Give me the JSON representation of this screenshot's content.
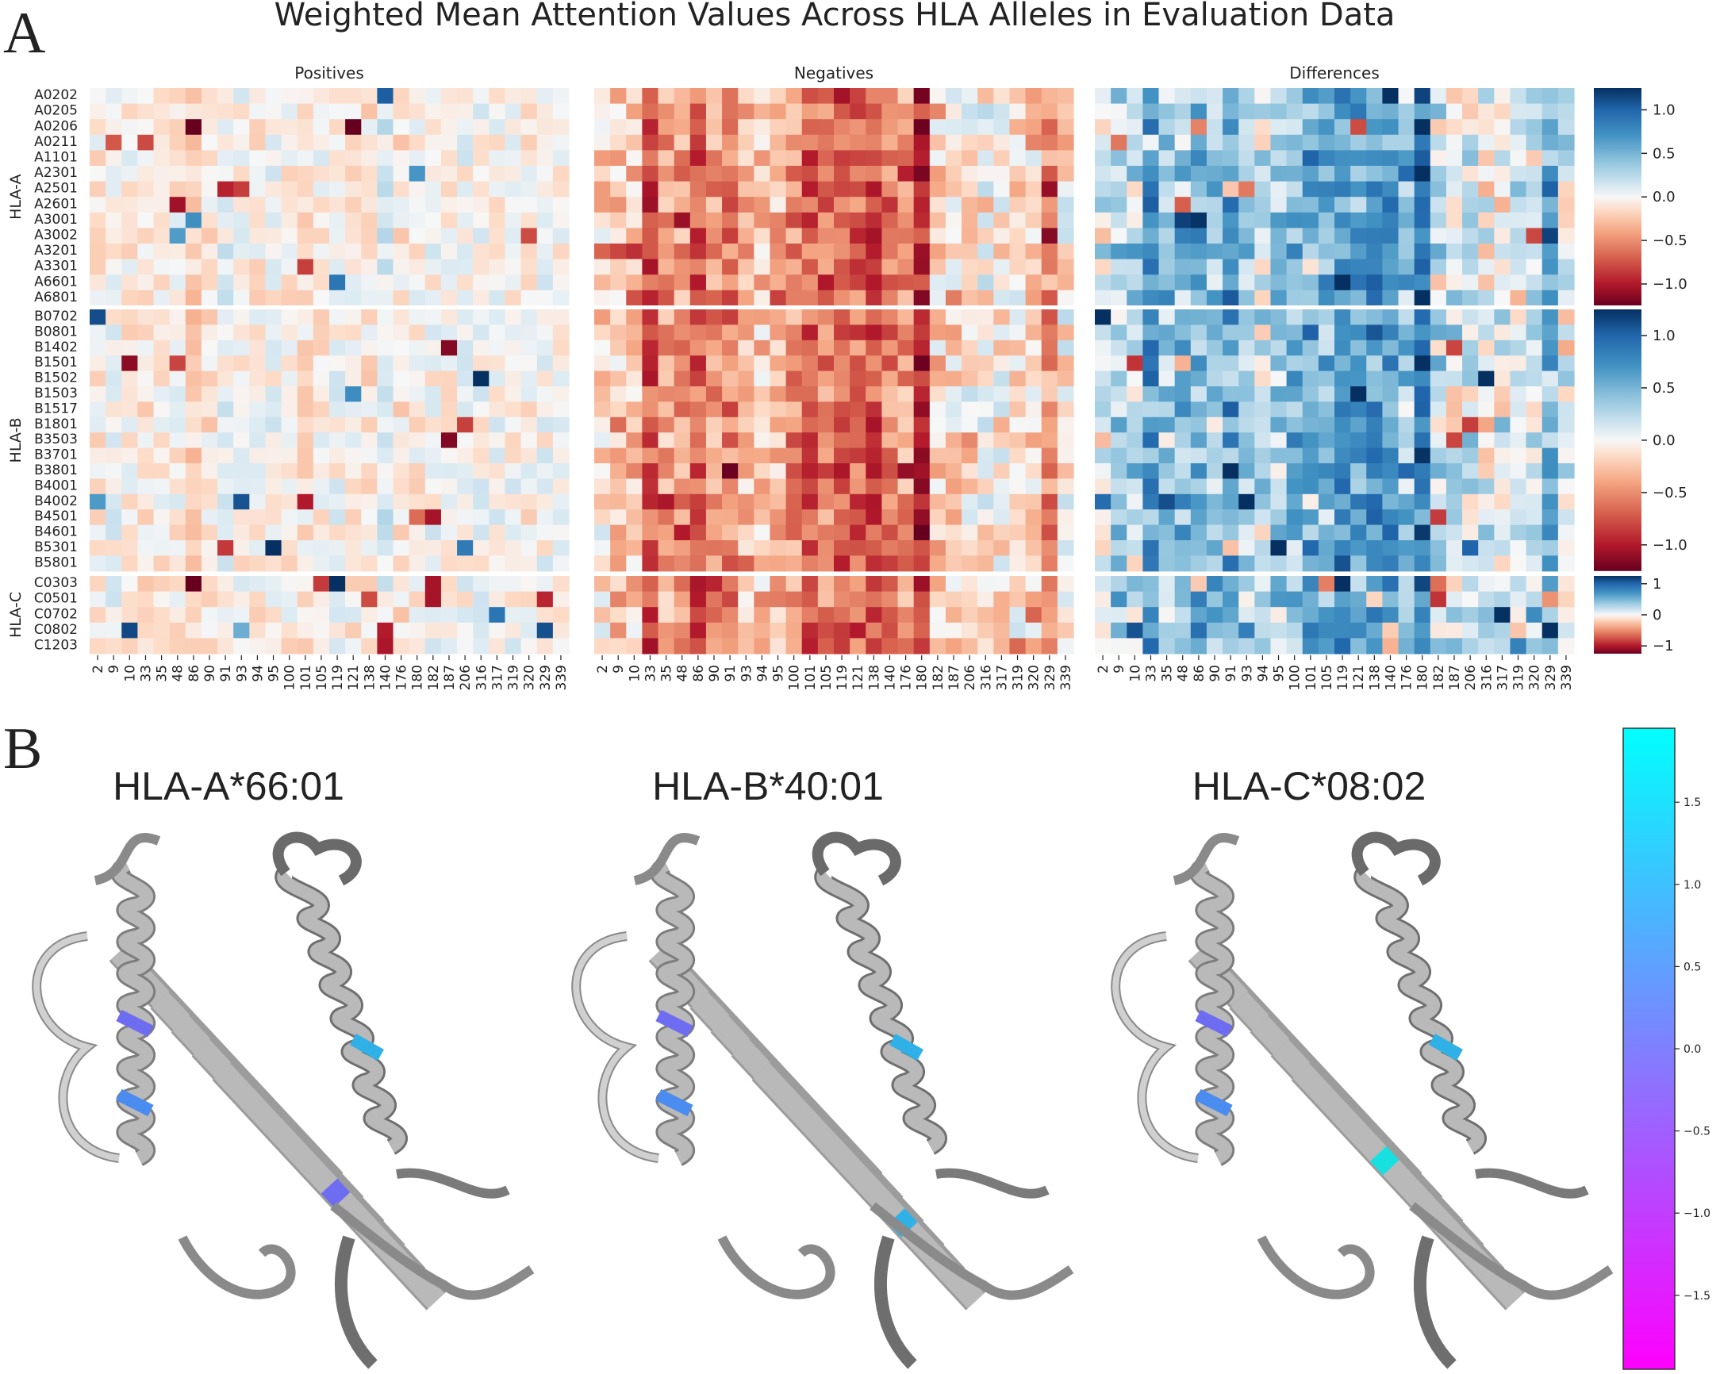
{
  "figure": {
    "panel_a_letter": "A",
    "panel_b_letter": "B",
    "title": "Weighted Mean Attention Values Across HLA Alleles in Evaluation Data"
  },
  "chart_data": [
    {
      "type": "heatmap",
      "title": "Weighted Mean Attention Values Across HLA Alleles in Evaluation Data",
      "panels": [
        "Positives",
        "Negatives",
        "Differences"
      ],
      "positions": [
        "2",
        "9",
        "10",
        "33",
        "35",
        "48",
        "86",
        "90",
        "91",
        "93",
        "94",
        "95",
        "100",
        "101",
        "105",
        "119",
        "121",
        "138",
        "140",
        "176",
        "180",
        "182",
        "187",
        "206",
        "316",
        "317",
        "319",
        "320",
        "329",
        "339"
      ],
      "groups": [
        {
          "label": "HLA-A",
          "alleles": [
            "A0202",
            "A0205",
            "A0206",
            "A0211",
            "A1101",
            "A2301",
            "A2501",
            "A2601",
            "A3001",
            "A3002",
            "A3201",
            "A3301",
            "A6601",
            "A6801"
          ],
          "colorbar_ticks": [
            "1.0",
            "0.5",
            "0.0",
            "−0.5",
            "−1.0"
          ],
          "range": [
            -1.25,
            1.25
          ]
        },
        {
          "label": "HLA-B",
          "alleles": [
            "B0702",
            "B0801",
            "B1402",
            "B1501",
            "B1502",
            "B1503",
            "B1517",
            "B1801",
            "B3503",
            "B3701",
            "B3801",
            "B4001",
            "B4002",
            "B4501",
            "B4601",
            "B5301",
            "B5801"
          ],
          "colorbar_ticks": [
            "1.0",
            "0.5",
            "0.0",
            "−0.5",
            "−1.0"
          ],
          "range": [
            -1.25,
            1.25
          ]
        },
        {
          "label": "HLA-C",
          "alleles": [
            "C0303",
            "C0501",
            "C0702",
            "C0802",
            "C1203"
          ],
          "colorbar_ticks": [
            "1",
            "0",
            "−1"
          ],
          "range": [
            -1.25,
            1.25
          ]
        }
      ],
      "colormap": "RdBu",
      "note_values": "cell values estimated by eye (approximate)"
    },
    {
      "type": "colorbar",
      "colormap": "cool",
      "range": [
        -1.95,
        1.95
      ],
      "ticks": [
        "1.5",
        "1.0",
        "0.5",
        "0.0",
        "−0.5",
        "−1.0",
        "−1.5"
      ]
    }
  ],
  "structures": {
    "titles": [
      "HLA-A*66:01",
      "HLA-B*40:01",
      "HLA-C*08:02"
    ],
    "ribbon_color": "#b9b9b9",
    "highlight_colors": [
      "#4a8cf0",
      "#6e6cf0",
      "#2fb0e6",
      "#17e0e0"
    ]
  }
}
